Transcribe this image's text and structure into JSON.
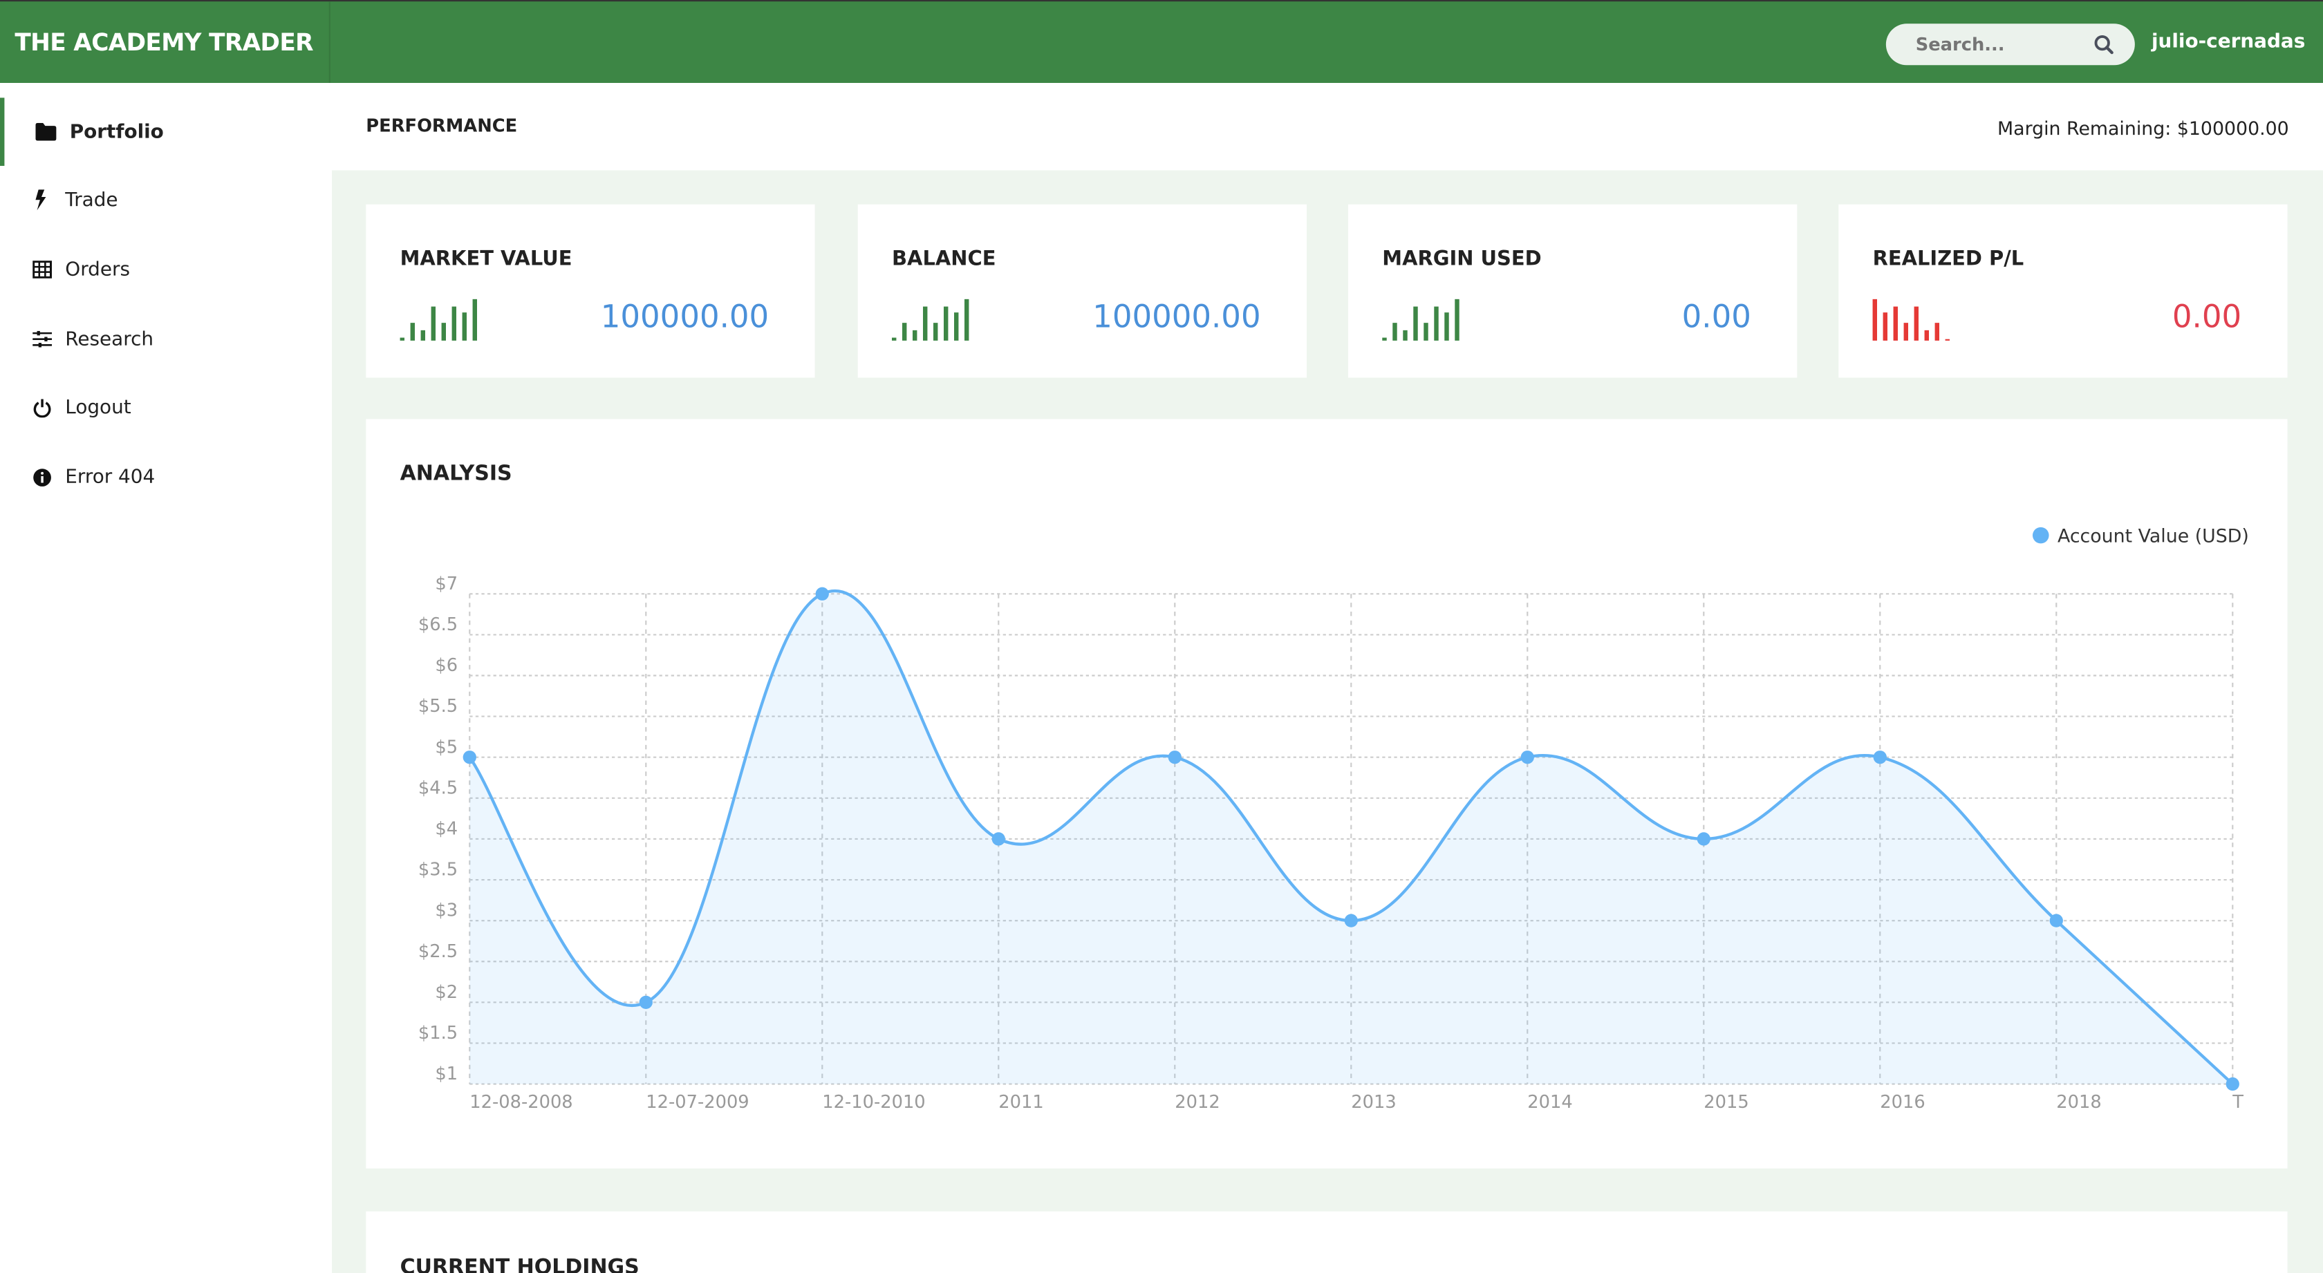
{
  "header": {
    "brand": "THE ACADEMY TRADER",
    "search_placeholder": "Search...",
    "username": "julio-cernadas",
    "color": "#3d8645"
  },
  "sidebar": {
    "items": [
      {
        "label": "Portfolio",
        "icon": "folder-icon",
        "active": true
      },
      {
        "label": "Trade",
        "icon": "bolt-icon"
      },
      {
        "label": "Orders",
        "icon": "table-icon"
      },
      {
        "label": "Research",
        "icon": "sliders-icon"
      },
      {
        "label": "Logout",
        "icon": "power-icon"
      },
      {
        "label": "Error 404",
        "icon": "info-icon"
      }
    ]
  },
  "performance": {
    "title": "PERFORMANCE",
    "margin_remaining": "Margin Remaining: $100000.00"
  },
  "cards": [
    {
      "title": "MARKET VALUE",
      "value": "100000.00",
      "color": "#3d8645",
      "spark": [
        1,
        5,
        3,
        10,
        5,
        10,
        8,
        12
      ]
    },
    {
      "title": "BALANCE",
      "value": "100000.00",
      "color": "#3d8645",
      "spark": [
        1,
        5,
        3,
        10,
        5,
        10,
        8,
        12
      ]
    },
    {
      "title": "MARGIN USED",
      "value": "0.00",
      "color": "#3d8645",
      "spark": [
        1,
        5,
        3,
        10,
        5,
        10,
        8,
        12
      ]
    },
    {
      "title": "REALIZED P/L",
      "value": "0.00",
      "color": "#e53935",
      "spark": [
        12,
        8,
        10,
        5,
        10,
        3,
        5,
        0.5
      ]
    }
  ],
  "analysis": {
    "title": "ANALYSIS"
  },
  "chart_data": {
    "type": "area",
    "title": "",
    "legend": {
      "entries": [
        "Account Value (USD)"
      ],
      "position": "top-right"
    },
    "x": [
      "12-08-2008",
      "12-07-2009",
      "12-10-2010",
      "2011",
      "2012",
      "2013",
      "2014",
      "2015",
      "2016",
      "2018",
      "T"
    ],
    "series": [
      {
        "name": "Account Value (USD)",
        "values": [
          5,
          2,
          7,
          4,
          5,
          3,
          5,
          4,
          5,
          3,
          1
        ],
        "color": "#63b3f5"
      }
    ],
    "ylim": [
      1,
      7
    ],
    "yticks": [
      "$7",
      "$6.5",
      "$6",
      "$5.5",
      "$5",
      "$4.5",
      "$4",
      "$3.5",
      "$3",
      "$2.5",
      "$2",
      "$1.5",
      "$1"
    ],
    "grid": true,
    "smooth": true
  },
  "holdings": {
    "title": "CURRENT HOLDINGS"
  }
}
